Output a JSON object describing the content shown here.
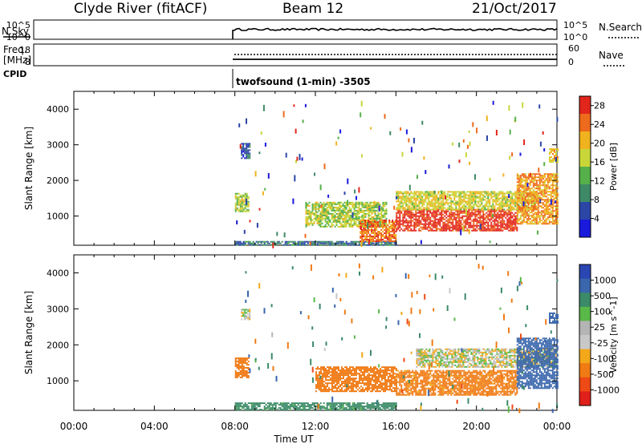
{
  "header": {
    "station": "Clyde River (fitACF)",
    "beam": "Beam 12",
    "date": "21/Oct/2017"
  },
  "strip_labels": {
    "nsky": "N.Sky",
    "nsky_hi": "10^5",
    "nsky_lo": "10^0",
    "nsearch": "N.Search",
    "nsearch_hi": "10^5",
    "nsearch_lo": "10^0",
    "freq_line1": "Freq.",
    "freq_line2": "[MHz]",
    "freq_hi": "18",
    "freq_lo": "8",
    "nave": "Nave",
    "nave_hi": "60",
    "nave_lo": "0",
    "cpid": "CPID",
    "mode": "twofsound (1-min) -3505"
  },
  "colors": {
    "power": [
      "#1a1adc",
      "#2c46a6",
      "#3e8a66",
      "#55b04a",
      "#c9d63a",
      "#f0b21e",
      "#ee6a1c",
      "#e2261c"
    ],
    "velocity": [
      "#e0201a",
      "#ee4a16",
      "#f07a14",
      "#f3a81a",
      "#c8c8c8",
      "#b4b4b4",
      "#58b848",
      "#3b8a68",
      "#3a66ac",
      "#2a46b2"
    ]
  },
  "chart_data": [
    {
      "type": "heatmap",
      "title": "Power",
      "xlabel": "Time UT",
      "ylabel": "Slant Range [km]",
      "xlim_hours": [
        0,
        24
      ],
      "ylim": [
        180,
        4500
      ],
      "x_ticks": [
        "00:00",
        "04:00",
        "08:00",
        "12:00",
        "16:00",
        "20:00",
        "00:00"
      ],
      "y_ticks": [
        "1000",
        "2000",
        "3000",
        "4000"
      ],
      "colorbar": {
        "label": "Power [dB]",
        "ticks": [
          "4",
          "8",
          "12",
          "16",
          "20",
          "24",
          "28"
        ],
        "range": [
          0,
          30
        ]
      },
      "regions": [
        {
          "t": [
            8.0,
            8.7
          ],
          "r": [
            1150,
            1650
          ],
          "level": 16
        },
        {
          "t": [
            8.3,
            8.7
          ],
          "r": [
            2600,
            3050
          ],
          "level": 6
        },
        {
          "t": [
            8.0,
            16.0
          ],
          "r": [
            200,
            300
          ],
          "level": 8
        },
        {
          "t": [
            11.5,
            15.5
          ],
          "r": [
            700,
            1400
          ],
          "level": 16
        },
        {
          "t": [
            14.2,
            16.0
          ],
          "r": [
            300,
            900
          ],
          "level": 24
        },
        {
          "t": [
            16.0,
            22.0
          ],
          "r": [
            600,
            1200
          ],
          "level": 28
        },
        {
          "t": [
            16.0,
            23.0
          ],
          "r": [
            1200,
            1700
          ],
          "level": 18
        },
        {
          "t": [
            22.0,
            24.0
          ],
          "r": [
            800,
            2200
          ],
          "level": 22
        },
        {
          "t": [
            23.6,
            24.0
          ],
          "r": [
            2500,
            2900
          ],
          "level": 20
        }
      ]
    },
    {
      "type": "heatmap",
      "title": "Velocity",
      "xlabel": "Time UT",
      "ylabel": "Slant Range [km]",
      "xlim_hours": [
        0,
        24
      ],
      "ylim": [
        180,
        4500
      ],
      "x_ticks": [
        "00:00",
        "04:00",
        "08:00",
        "12:00",
        "16:00",
        "20:00",
        "00:00"
      ],
      "y_ticks": [
        "1000",
        "2000",
        "3000",
        "4000"
      ],
      "colorbar": {
        "label": "Velocity [m s^-1]",
        "ticks": [
          "1000",
          "500",
          "100",
          "25",
          "-25",
          "-100",
          "-500",
          "-1000"
        ]
      },
      "regions": [
        {
          "t": [
            8.0,
            8.7
          ],
          "r": [
            1100,
            1650
          ],
          "level": -200
        },
        {
          "t": [
            8.3,
            8.7
          ],
          "r": [
            2700,
            3000
          ],
          "level": 0
        },
        {
          "t": [
            8.0,
            16.0
          ],
          "r": [
            200,
            400
          ],
          "level": 150
        },
        {
          "t": [
            12.0,
            16.0
          ],
          "r": [
            700,
            1400
          ],
          "level": -400
        },
        {
          "t": [
            16.0,
            22.0
          ],
          "r": [
            600,
            1300
          ],
          "level": -150
        },
        {
          "t": [
            17.0,
            24.0
          ],
          "r": [
            1400,
            1900
          ],
          "level": 0
        },
        {
          "t": [
            22.0,
            24.0
          ],
          "r": [
            800,
            2200
          ],
          "level": 600
        },
        {
          "t": [
            23.6,
            24.0
          ],
          "r": [
            2600,
            2900
          ],
          "level": 800
        }
      ]
    }
  ]
}
